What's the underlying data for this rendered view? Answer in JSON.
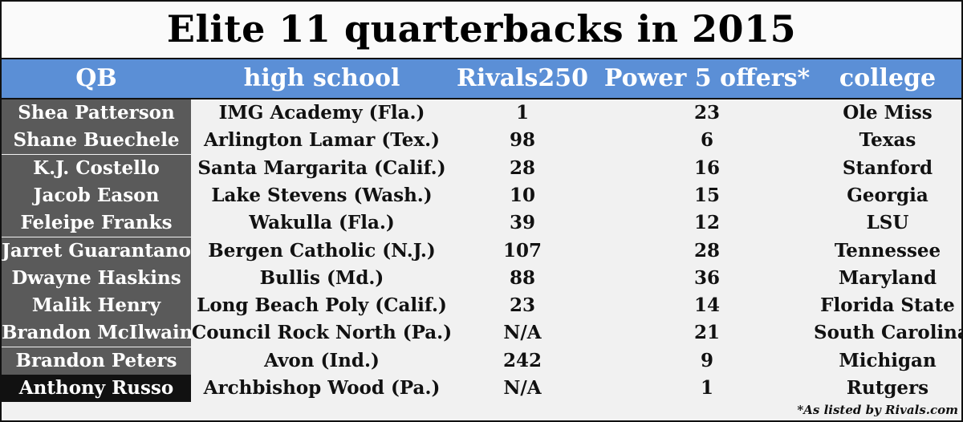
{
  "chart_data": {
    "type": "table",
    "title": "Elite 11 quarterbacks in 2015",
    "columns": [
      "QB",
      "high school",
      "Rivals250",
      "Power 5 offers*",
      "college"
    ],
    "rows": [
      [
        "Shea Patterson",
        "IMG Academy (Fla.)",
        "1",
        "23",
        "Ole Miss"
      ],
      [
        "Shane Buechele",
        "Arlington Lamar (Tex.)",
        "98",
        "6",
        "Texas"
      ],
      [
        "K.J. Costello",
        "Santa Margarita (Calif.)",
        "28",
        "16",
        "Stanford"
      ],
      [
        "Jacob Eason",
        "Lake Stevens (Wash.)",
        "10",
        "15",
        "Georgia"
      ],
      [
        "Feleipe Franks",
        "Wakulla (Fla.)",
        "39",
        "12",
        "LSU"
      ],
      [
        "Jarret Guarantano",
        "Bergen Catholic (N.J.)",
        "107",
        "28",
        "Tennessee"
      ],
      [
        "Dwayne Haskins",
        "Bullis (Md.)",
        "88",
        "36",
        "Maryland"
      ],
      [
        "Malik Henry",
        "Long Beach Poly (Calif.)",
        "23",
        "14",
        "Florida State"
      ],
      [
        "Brandon McIlwain",
        "Council Rock North (Pa.)",
        "N/A",
        "21",
        "South Carolina"
      ],
      [
        "Brandon Peters",
        "Avon (Ind.)",
        "242",
        "9",
        "Michigan"
      ],
      [
        "Anthony Russo",
        "Archbishop Wood (Pa.)",
        "N/A",
        "1",
        "Rutgers"
      ]
    ],
    "footnote": "*As listed by Rivals.com",
    "colors": {
      "header_bg": "#5b8fd6",
      "qb_column_bg": "#5a5a5a",
      "last_row_qb_bg": "#111111",
      "table_bg": "#f1f1f1"
    }
  }
}
